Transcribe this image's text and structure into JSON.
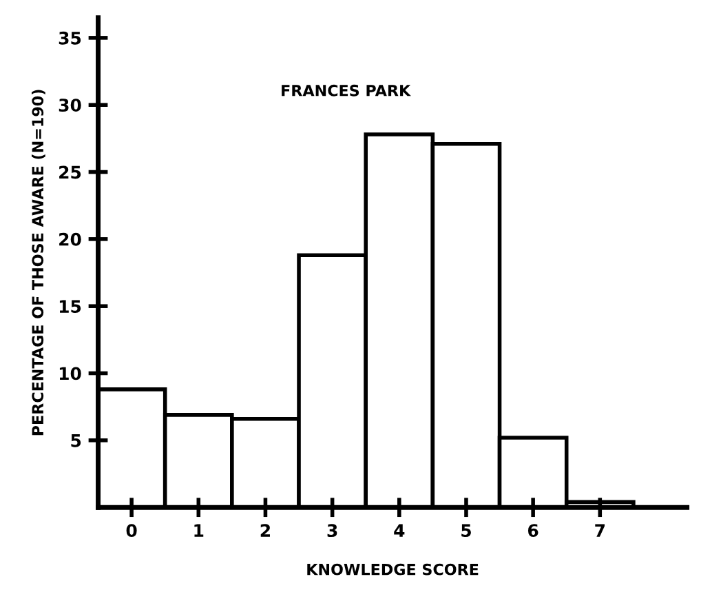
{
  "chart_data": {
    "type": "histogram",
    "title": "FRANCES PARK",
    "xlabel": "KNOWLEDGE SCORE",
    "ylabel": "PERCENTAGE OF THOSE AWARE (N=190)",
    "bins": [
      -0.5,
      0.5,
      1.5,
      2.5,
      3.5,
      4.5,
      5.5,
      6.5,
      7.5
    ],
    "values": [
      8.8,
      6.9,
      6.6,
      18.8,
      27.8,
      27.1,
      5.2,
      0.4
    ],
    "color": "#ffffff",
    "xlim": [
      -0.5,
      8.3
    ],
    "ylim": [
      0,
      36.5
    ],
    "xticks": [
      0,
      1,
      2,
      3,
      4,
      5,
      6,
      7
    ],
    "yticks": [
      5,
      10,
      15,
      20,
      25,
      30,
      35
    ],
    "grid": false
  }
}
